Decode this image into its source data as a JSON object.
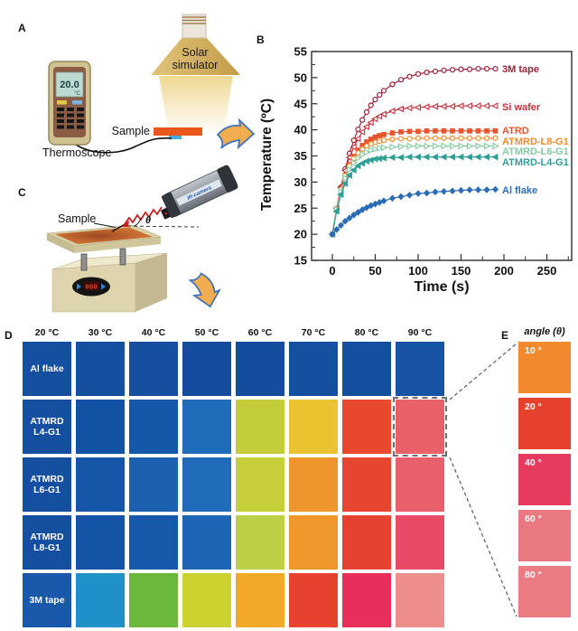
{
  "panel_labels": {
    "a": "A",
    "b": "B",
    "c": "C",
    "d": "D",
    "e": "E"
  },
  "panel_a": {
    "lamp_label_line1": "Solar",
    "lamp_label_line2": "simulator",
    "sample_label": "Sample",
    "thermoscope_label": "Thermoscope",
    "thermoscope_reading": "20.0",
    "thermoscope_unit": "°C"
  },
  "panel_c": {
    "sample_label": "Sample",
    "angle_symbol": "θ",
    "camera_label": "IR-camera",
    "display_value": "000"
  },
  "chart_data": {
    "type": "line",
    "title": "",
    "xlabel": "Time (s)",
    "ylabel": "Temperature (ºC)",
    "xlim": [
      -24,
      279
    ],
    "ylim": [
      15,
      55
    ],
    "xticks": [
      0,
      50,
      100,
      150,
      200,
      250
    ],
    "yticks": [
      15,
      20,
      25,
      30,
      35,
      40,
      45,
      50,
      55
    ],
    "grid": false,
    "legend_position": "right-of-curves",
    "x": [
      0,
      5,
      10,
      15,
      20,
      25,
      30,
      35,
      40,
      45,
      50,
      55,
      60,
      70,
      80,
      90,
      100,
      110,
      120,
      130,
      140,
      150,
      160,
      170,
      180,
      190
    ],
    "series": [
      {
        "name": "3M tape",
        "color": "#9e2038",
        "marker": "circle",
        "marker_fill": "open",
        "values": [
          20,
          24.9,
          29,
          32.5,
          35.5,
          38,
          40.1,
          41.9,
          43.4,
          44.7,
          45.8,
          46.7,
          47.5,
          48.7,
          49.6,
          50.2,
          50.7,
          51,
          51.2,
          51.4,
          51.5,
          51.6,
          51.6,
          51.7,
          51.7,
          51.7
        ]
      },
      {
        "name": "Si wafer",
        "color": "#c4313c",
        "marker": "triangle-left",
        "marker_fill": "open",
        "values": [
          20,
          25,
          29,
          32.2,
          34.7,
          36.7,
          38.3,
          39.6,
          40.6,
          41.4,
          42.1,
          42.6,
          43,
          43.6,
          44,
          44.2,
          44.3,
          44.4,
          44.5,
          44.5,
          44.5,
          44.6,
          44.6,
          44.6,
          44.6,
          44.6
        ]
      },
      {
        "name": "ATRD",
        "color": "#e8542e",
        "marker": "square",
        "marker_fill": "solid",
        "values": [
          20,
          24.8,
          28.4,
          31.2,
          33.3,
          34.9,
          36.1,
          37,
          37.7,
          38.2,
          38.6,
          38.9,
          39.1,
          39.4,
          39.6,
          39.7,
          39.7,
          39.8,
          39.8,
          39.8,
          39.8,
          39.8,
          39.8,
          39.8,
          39.8,
          39.8
        ]
      },
      {
        "name": "ATMRD-L8-G1",
        "color": "#f08c2e",
        "marker": "circle",
        "marker_fill": "open",
        "values": [
          20,
          24.9,
          28.6,
          31.2,
          33.1,
          34.5,
          35.6,
          36.3,
          36.9,
          37.3,
          37.6,
          37.8,
          38,
          38.2,
          38.3,
          38.3,
          38.4,
          38.4,
          38.4,
          38.4,
          38.4,
          38.4,
          38.4,
          38.4,
          38.4,
          38.4
        ]
      },
      {
        "name": "ATMRD-L6-G1",
        "color": "#85c9a2",
        "marker": "triangle-right",
        "marker_fill": "open",
        "values": [
          20,
          24.8,
          28.2,
          30.7,
          32.4,
          33.7,
          34.6,
          35.3,
          35.7,
          36.1,
          36.3,
          36.5,
          36.6,
          36.7,
          36.8,
          36.9,
          36.9,
          36.9,
          36.9,
          36.9,
          36.9,
          36.9,
          36.9,
          36.9,
          36.9,
          36.9
        ]
      },
      {
        "name": "ATMRD-L4-G1",
        "color": "#2e9e96",
        "marker": "triangle-left",
        "marker_fill": "solid",
        "values": [
          20,
          24.4,
          27.6,
          29.7,
          31.3,
          32.3,
          33.1,
          33.6,
          34,
          34.2,
          34.4,
          34.5,
          34.6,
          34.7,
          34.7,
          34.8,
          34.8,
          34.8,
          34.8,
          34.8,
          34.8,
          34.8,
          34.8,
          34.8,
          34.8,
          34.8
        ]
      },
      {
        "name": "Al flake",
        "color": "#2b6cb5",
        "marker": "diamond",
        "marker_fill": "solid",
        "values": [
          20,
          20.9,
          21.7,
          22.5,
          23.1,
          23.7,
          24.2,
          24.7,
          25.1,
          25.5,
          25.8,
          26.1,
          26.4,
          26.9,
          27.2,
          27.5,
          27.8,
          27.9,
          28.1,
          28.2,
          28.3,
          28.4,
          28.5,
          28.5,
          28.5,
          28.6
        ]
      }
    ]
  },
  "panel_d": {
    "col_headers": [
      "20 °C",
      "30 °C",
      "40 °C",
      "50 °C",
      "60 °C",
      "70 °C",
      "80 °C",
      "90 °C"
    ],
    "rows": [
      {
        "label_lines": [
          "Al flake"
        ],
        "colors": [
          "#154f9f",
          "#154f9f",
          "#164fa0",
          "#144d9e",
          "#144d9e",
          "#154f9f",
          "#154f9f",
          "#1653a5"
        ],
        "highlight_col": -1
      },
      {
        "label_lines": [
          "ATMRD",
          "L4-G1"
        ],
        "colors": [
          "#154f9f",
          "#1252a4",
          "#1557a9",
          "#1e6cba",
          "#c3cd3a",
          "#e8c22f",
          "#e8492c",
          "#e96168"
        ],
        "highlight_col": 7
      },
      {
        "label_lines": [
          "ATMRD",
          "L6-G1"
        ],
        "colors": [
          "#154f9f",
          "#1556a8",
          "#1c60b0",
          "#216cba",
          "#c6cf39",
          "#ef952d",
          "#e6452f",
          "#e9606c"
        ],
        "highlight_col": -1
      },
      {
        "label_lines": [
          "ATMRD",
          "L8-G1"
        ],
        "colors": [
          "#154f9f",
          "#1454a6",
          "#1659ab",
          "#1d66b5",
          "#bdcf44",
          "#f0982c",
          "#e64231",
          "#e84a67"
        ],
        "highlight_col": -1
      },
      {
        "label_lines": [
          "3M tape"
        ],
        "colors": [
          "#1a58ac",
          "#2090c8",
          "#6cb83c",
          "#ccd22f",
          "#f2a92a",
          "#e74130",
          "#e82e5a",
          "#ee8e8c"
        ],
        "highlight_col": -1
      }
    ]
  },
  "panel_e": {
    "header": "angle (θ)",
    "cells": [
      {
        "label": "10 °",
        "color": "#ef8a2e"
      },
      {
        "label": "20 °",
        "color": "#e5412c"
      },
      {
        "label": "40 °",
        "color": "#e63a5e"
      },
      {
        "label": "60 °",
        "color": "#ea7880"
      },
      {
        "label": "80 °",
        "color": "#eb7b82"
      }
    ]
  }
}
